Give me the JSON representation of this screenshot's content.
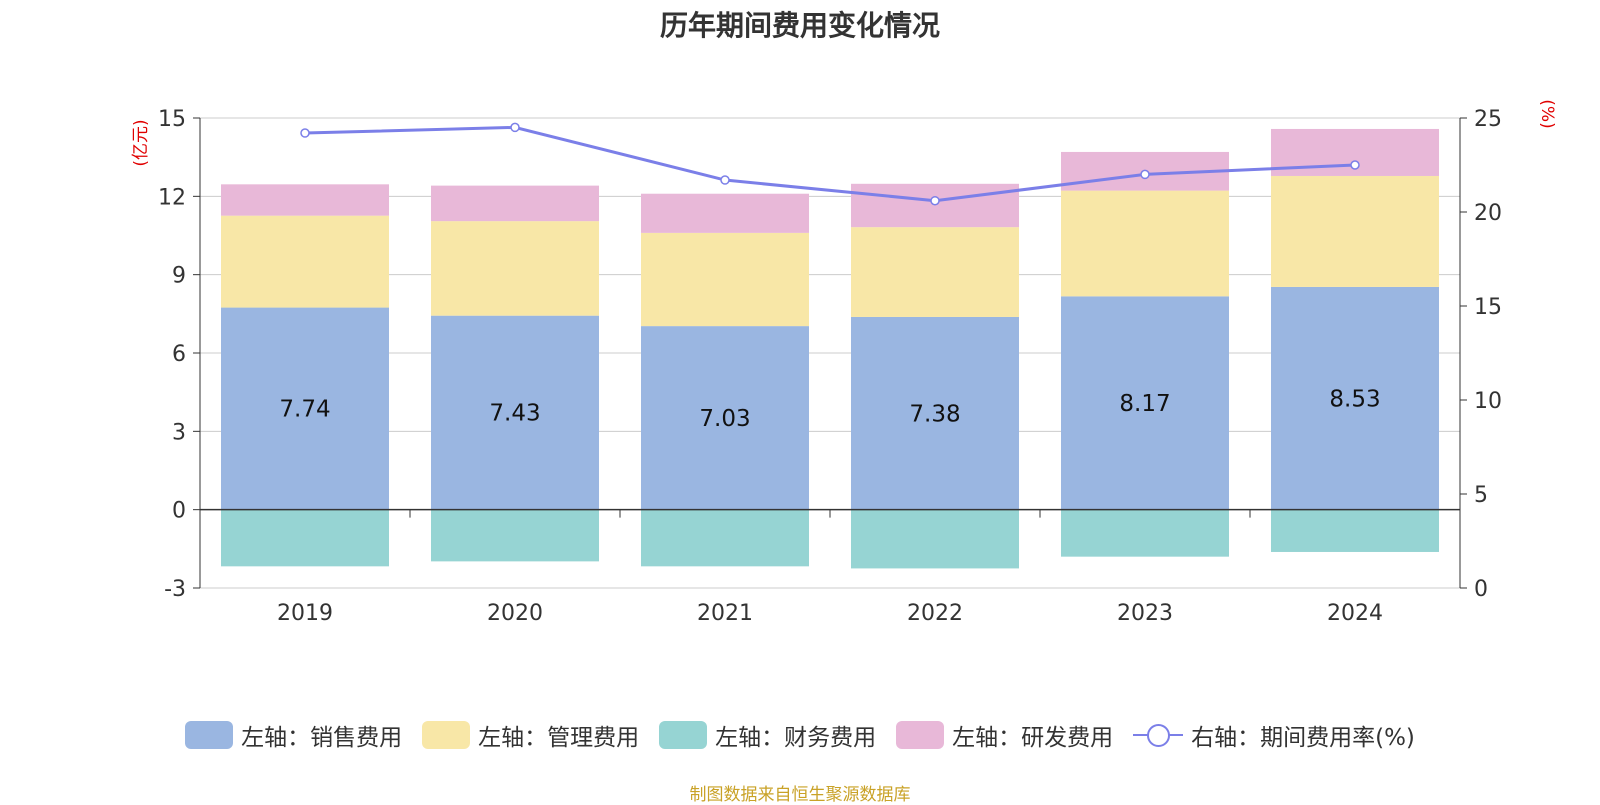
{
  "title": "历年期间费用变化情况",
  "source": "制图数据来自恒生聚源数据库",
  "chart_data": {
    "type": "bar",
    "stacked": true,
    "title": "历年期间费用变化情况",
    "categories": [
      "2019",
      "2020",
      "2021",
      "2022",
      "2023",
      "2024"
    ],
    "left_axis": {
      "unit": "(亿元)",
      "ylim": [
        -3,
        15
      ],
      "ticks": [
        "-3",
        "0",
        "3",
        "6",
        "9",
        "12",
        "15"
      ]
    },
    "right_axis": {
      "unit": "(%)",
      "ylim": [
        0,
        25
      ],
      "ticks": [
        "0",
        "5",
        "10",
        "15",
        "20",
        "25"
      ]
    },
    "series": [
      {
        "name": "左轴：销售费用",
        "axis": "left",
        "color": "#9ab6e1",
        "values": [
          7.74,
          7.43,
          7.03,
          7.38,
          8.17,
          8.53
        ],
        "labels": [
          "7.74",
          "7.43",
          "7.03",
          "7.38",
          "8.17",
          "8.53"
        ]
      },
      {
        "name": "左轴：管理费用",
        "axis": "left",
        "color": "#f8e7a7",
        "values": [
          3.52,
          3.62,
          3.57,
          3.44,
          4.05,
          4.25
        ]
      },
      {
        "name": "左轴：财务费用",
        "axis": "left",
        "color": "#96d4d3",
        "values": [
          -2.17,
          -1.98,
          -2.17,
          -2.25,
          -1.8,
          -1.62
        ]
      },
      {
        "name": "左轴：研发费用",
        "axis": "left",
        "color": "#e8b8d8",
        "values": [
          1.2,
          1.36,
          1.5,
          1.66,
          1.48,
          1.8
        ]
      },
      {
        "name": "右轴：期间费用率(%)",
        "axis": "right",
        "type": "line",
        "color": "#7b7fe8",
        "values": [
          24.2,
          24.5,
          21.7,
          20.6,
          22.0,
          22.5
        ]
      }
    ]
  }
}
